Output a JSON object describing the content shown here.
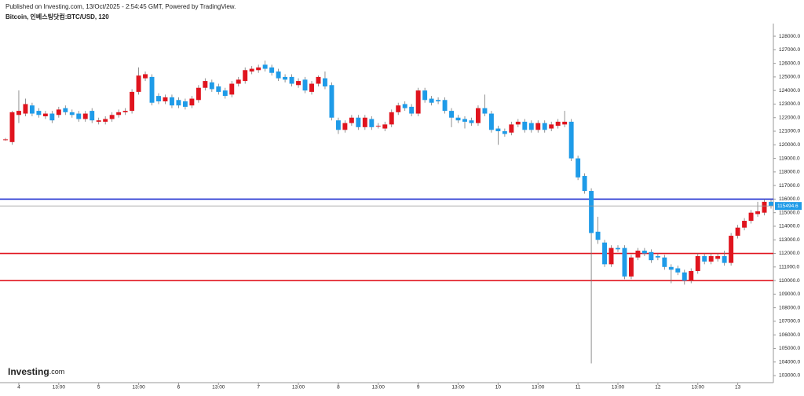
{
  "chart_data": {
    "type": "candlestick",
    "subtitle": "Published on Investing.com, 13/Oct/2025 - 2:54:45 GMT, Powered by TradingView.",
    "title": "Bitcoin, 인베스팅닷컴:BTC/USD, 120",
    "categories": [
      null,
      null,
      "4",
      null,
      null,
      null,
      null,
      null,
      "13:00",
      null,
      null,
      null,
      null,
      null,
      "5",
      null,
      null,
      null,
      null,
      null,
      "13:00",
      null,
      null,
      null,
      null,
      null,
      "6",
      null,
      null,
      null,
      null,
      null,
      "13:00",
      null,
      null,
      null,
      null,
      null,
      "7",
      null,
      null,
      null,
      null,
      null,
      "13:00",
      null,
      null,
      null,
      null,
      null,
      "8",
      null,
      null,
      null,
      null,
      null,
      "13:00",
      null,
      null,
      null,
      null,
      null,
      "9",
      null,
      null,
      null,
      null,
      null,
      "13:00",
      null,
      null,
      null,
      null,
      null,
      "10",
      null,
      null,
      null,
      null,
      null,
      "13:00",
      null,
      null,
      null,
      null,
      null,
      "11",
      null,
      null,
      null,
      null,
      null,
      "13:00",
      null,
      null,
      null,
      null,
      null,
      "12",
      null,
      null,
      null,
      null,
      null,
      "13:00",
      null,
      null,
      null,
      null,
      null,
      "13",
      null,
      null,
      null,
      null,
      null
    ],
    "open": [
      120400,
      120200,
      122200,
      122300,
      122900,
      122500,
      122100,
      122300,
      122200,
      122700,
      122400,
      122300,
      121900,
      122500,
      121700,
      121700,
      121900,
      122200,
      122400,
      122500,
      123900,
      124900,
      125000,
      123600,
      123200,
      123500,
      123300,
      123200,
      122900,
      123300,
      124200,
      124600,
      124300,
      124000,
      123700,
      124500,
      124700,
      125400,
      125500,
      125900,
      125700,
      125400,
      125000,
      125000,
      124400,
      124800,
      123900,
      124500,
      124900,
      124400,
      121800,
      121100,
      121600,
      122000,
      121300,
      121900,
      121400,
      121200,
      121500,
      122400,
      123000,
      122800,
      122300,
      124000,
      123400,
      123300,
      123300,
      122500,
      122000,
      121900,
      121800,
      121600,
      122700,
      122300,
      121200,
      121000,
      120900,
      121500,
      121700,
      121600,
      121100,
      121600,
      121200,
      121400,
      121500,
      121700,
      119000,
      117700,
      116600,
      113600,
      112800,
      111200,
      112400,
      112400,
      110300,
      111700,
      112200,
      112100,
      111800,
      111700,
      111000,
      110900,
      110600,
      110000,
      110700,
      111800,
      111400,
      111600,
      111800,
      111300,
      113300,
      113900,
      114400,
      114900,
      115000,
      115800
    ],
    "high": [
      120500,
      122500,
      124000,
      123400,
      123100,
      122700,
      122500,
      122500,
      122800,
      122900,
      122600,
      122500,
      122500,
      122700,
      122000,
      122100,
      122400,
      122600,
      122700,
      124100,
      125700,
      125400,
      125200,
      123800,
      123700,
      123700,
      123500,
      123400,
      123600,
      124400,
      124900,
      124800,
      124500,
      124200,
      124700,
      125000,
      125700,
      125800,
      125900,
      126200,
      125900,
      125600,
      125200,
      125200,
      124900,
      125000,
      124700,
      125100,
      125400,
      124600,
      122000,
      121800,
      122200,
      122200,
      122200,
      122100,
      121600,
      121700,
      122600,
      123100,
      123200,
      123000,
      124200,
      124200,
      123600,
      123500,
      123500,
      122700,
      122200,
      122100,
      122000,
      122900,
      123700,
      122500,
      121400,
      121200,
      121700,
      121900,
      121900,
      121800,
      121800,
      121800,
      121700,
      121900,
      122500,
      121900,
      119200,
      117900,
      116800,
      114700,
      113000,
      112600,
      112600,
      112600,
      111900,
      112400,
      112400,
      112300,
      112000,
      111900,
      111200,
      111100,
      110800,
      110900,
      112000,
      112000,
      112000,
      112000,
      112200,
      113500,
      114100,
      114600,
      115200,
      115800,
      116000,
      116000
    ],
    "low": [
      120300,
      120000,
      121600,
      122100,
      122100,
      122000,
      121900,
      121600,
      122000,
      122200,
      122000,
      121700,
      121700,
      121600,
      121500,
      121500,
      121700,
      122000,
      122200,
      122300,
      123700,
      124700,
      122900,
      123000,
      123000,
      122700,
      122700,
      122600,
      122700,
      123100,
      124000,
      123900,
      123700,
      123400,
      123500,
      124300,
      124500,
      125200,
      125300,
      125400,
      125100,
      124700,
      124600,
      124300,
      124200,
      123800,
      123700,
      124300,
      124100,
      121800,
      120800,
      120900,
      121400,
      121100,
      121100,
      121100,
      121200,
      121000,
      121300,
      122200,
      122500,
      122100,
      122100,
      123100,
      122900,
      123000,
      122300,
      121300,
      121600,
      121200,
      121400,
      121400,
      122100,
      120900,
      120000,
      120600,
      120700,
      121300,
      120900,
      120900,
      120900,
      120900,
      121000,
      121200,
      121300,
      118800,
      117400,
      116400,
      103900,
      112700,
      111000,
      111000,
      112100,
      110100,
      110100,
      111500,
      111800,
      111300,
      111500,
      110800,
      109800,
      110400,
      109700,
      109800,
      110500,
      111200,
      111200,
      111400,
      111100,
      111100,
      113100,
      113700,
      114200,
      114700,
      114800,
      115300
    ],
    "close": [
      120400,
      122400,
      122500,
      123000,
      122300,
      122200,
      122300,
      121800,
      122600,
      122400,
      122200,
      121900,
      122300,
      121800,
      121800,
      121900,
      122200,
      122400,
      122500,
      123900,
      125100,
      125200,
      123100,
      123200,
      123500,
      122900,
      122900,
      122800,
      123400,
      124200,
      124700,
      124100,
      123900,
      123600,
      124500,
      124800,
      125500,
      125600,
      125700,
      125600,
      125300,
      124900,
      124800,
      124500,
      124700,
      124000,
      124500,
      125000,
      124300,
      122000,
      121100,
      121600,
      122000,
      121300,
      122000,
      121300,
      121400,
      121500,
      122400,
      122900,
      122700,
      122300,
      124000,
      123300,
      123100,
      123200,
      122500,
      122000,
      121800,
      121700,
      121600,
      122700,
      122300,
      121100,
      121000,
      120800,
      121500,
      121700,
      121100,
      121100,
      121600,
      121100,
      121500,
      121700,
      121700,
      119000,
      117600,
      116600,
      113500,
      113000,
      111200,
      112400,
      112300,
      110300,
      111700,
      112200,
      112000,
      111500,
      111700,
      111000,
      110800,
      110600,
      110000,
      110700,
      111800,
      111400,
      111800,
      111800,
      111300,
      113300,
      113900,
      114400,
      115000,
      115100,
      115800,
      115500
    ],
    "up_color": "#e0141e",
    "down_color": "#1e9be8",
    "ylim": [
      102480,
      128930
    ],
    "yticks": [
      {
        "value": 103000,
        "label": "103000.0"
      },
      {
        "value": 104000,
        "label": "104000.0"
      },
      {
        "value": 105000,
        "label": "105000.0"
      },
      {
        "value": 106000,
        "label": "106000.0"
      },
      {
        "value": 107000,
        "label": "107000.0"
      },
      {
        "value": 108000,
        "label": "108000.0"
      },
      {
        "value": 109000,
        "label": "109000.0"
      },
      {
        "value": 110000,
        "label": "110000.0"
      },
      {
        "value": 111000,
        "label": "111000.0"
      },
      {
        "value": 112000,
        "label": "112000.0"
      },
      {
        "value": 113000,
        "label": "113000.0"
      },
      {
        "value": 114000,
        "label": "114000.0"
      },
      {
        "value": 115000,
        "label": "115000.0"
      },
      {
        "value": 116000,
        "label": "116000.0"
      },
      {
        "value": 117000,
        "label": "117000.0"
      },
      {
        "value": 118000,
        "label": "118000.0"
      },
      {
        "value": 119000,
        "label": "119000.0"
      },
      {
        "value": 120000,
        "label": "120000.0"
      },
      {
        "value": 121000,
        "label": "121000.0"
      },
      {
        "value": 122000,
        "label": "122000.0"
      },
      {
        "value": 123000,
        "label": "123000.0"
      },
      {
        "value": 124000,
        "label": "124000.0"
      },
      {
        "value": 125000,
        "label": "125000.0"
      },
      {
        "value": 126000,
        "label": "126000.0"
      },
      {
        "value": 127000,
        "label": "127000.0"
      },
      {
        "value": 128000,
        "label": "128000.0"
      }
    ],
    "hlines": [
      {
        "value": 116000,
        "color": "#1f2fd0"
      },
      {
        "value": 112000,
        "color": "#e0141e"
      },
      {
        "value": 110000,
        "color": "#e0141e"
      }
    ],
    "last_price": 115494.6,
    "last_price_color": "#1e9be8",
    "grid": false
  },
  "logo": {
    "name": "Investing",
    "suffix": ".com"
  }
}
